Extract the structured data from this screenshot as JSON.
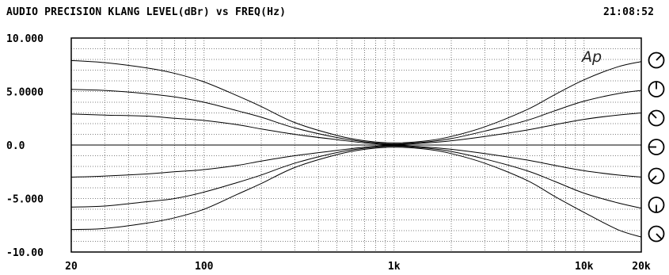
{
  "header": {
    "title": "AUDIO PRECISION KLANG LEVEL(dBr) vs FREQ(Hz)",
    "time": "21:08:52"
  },
  "logo_text": "Ap",
  "knob_icons": [
    "knob-icon",
    "knob-icon",
    "knob-icon",
    "knob-icon",
    "knob-icon",
    "knob-icon",
    "knob-icon"
  ],
  "knob_angles_deg": [
    -45,
    -90,
    -135,
    180,
    135,
    90,
    45
  ],
  "chart_data": {
    "type": "line",
    "x_scale": "log",
    "xlim": [
      20,
      20000
    ],
    "ylim": [
      -10,
      10
    ],
    "grid": true,
    "ytick_values": [
      10,
      5,
      0,
      -5,
      -10
    ],
    "ytick_labels": [
      "10.000",
      "5.0000",
      "0.0",
      "-5.000",
      "-10.00"
    ],
    "xtick_values": [
      20,
      100,
      1000,
      10000,
      20000
    ],
    "xtick_labels": [
      "20",
      "100",
      "1k",
      "10k",
      "20k"
    ],
    "x": [
      20,
      30,
      50,
      70,
      100,
      150,
      200,
      300,
      500,
      700,
      1000,
      1500,
      2000,
      3000,
      5000,
      7000,
      10000,
      15000,
      20000
    ],
    "series": [
      {
        "values": [
          7.9,
          7.7,
          7.2,
          6.7,
          5.9,
          4.6,
          3.6,
          2.1,
          0.9,
          0.4,
          0.2,
          0.4,
          0.8,
          1.7,
          3.3,
          4.7,
          6.1,
          7.3,
          7.8
        ]
      },
      {
        "values": [
          5.2,
          5.1,
          4.8,
          4.5,
          4.0,
          3.2,
          2.6,
          1.6,
          0.7,
          0.3,
          0.1,
          0.3,
          0.6,
          1.3,
          2.3,
          3.2,
          4.1,
          4.8,
          5.1
        ]
      },
      {
        "values": [
          2.9,
          2.8,
          2.7,
          2.5,
          2.3,
          1.9,
          1.5,
          1.0,
          0.5,
          0.2,
          0.05,
          0.2,
          0.4,
          0.8,
          1.4,
          1.9,
          2.4,
          2.8,
          3.0
        ]
      },
      {
        "values": [
          -3.0,
          -2.9,
          -2.7,
          -2.5,
          -2.3,
          -1.9,
          -1.5,
          -1.0,
          -0.5,
          -0.2,
          -0.05,
          -0.2,
          -0.4,
          -0.8,
          -1.4,
          -1.9,
          -2.4,
          -2.8,
          -3.0
        ]
      },
      {
        "values": [
          -5.8,
          -5.7,
          -5.3,
          -5.0,
          -4.4,
          -3.5,
          -2.8,
          -1.7,
          -0.7,
          -0.3,
          -0.1,
          -0.3,
          -0.6,
          -1.3,
          -2.4,
          -3.4,
          -4.5,
          -5.4,
          -5.9
        ]
      },
      {
        "values": [
          -7.9,
          -7.8,
          -7.3,
          -6.8,
          -6.0,
          -4.6,
          -3.6,
          -2.1,
          -0.9,
          -0.4,
          -0.2,
          -0.4,
          -0.8,
          -1.7,
          -3.3,
          -4.8,
          -6.3,
          -7.9,
          -8.6
        ]
      }
    ]
  }
}
